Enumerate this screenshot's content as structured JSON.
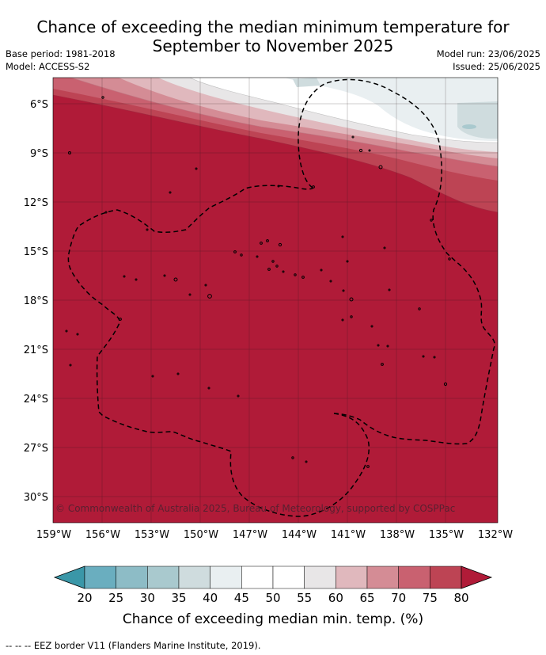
{
  "title_line1": "Chance of exceeding the median minimum temperature for",
  "title_line2": "September to November 2025",
  "base_period": "Base period: 1981-2018",
  "model": "Model: ACCESS-S2",
  "model_run": "Model run: 23/06/2025",
  "issued": "Issued: 25/06/2025",
  "lat_labels": [
    "6°S",
    "9°S",
    "12°S",
    "15°S",
    "18°S",
    "21°S",
    "24°S",
    "27°S",
    "30°S"
  ],
  "lon_labels": [
    "159°W",
    "156°W",
    "153°W",
    "150°W",
    "147°W",
    "144°W",
    "141°W",
    "138°W",
    "135°W",
    "132°W"
  ],
  "copyright": "© Commonwealth of Australia 2025, Bureau of Meteorology, supported by COSPPac",
  "colorbar": {
    "ticks": [
      "20",
      "25",
      "30",
      "35",
      "40",
      "45",
      "50",
      "55",
      "60",
      "65",
      "70",
      "75",
      "80"
    ],
    "colors": [
      "#3a97a8",
      "#6aaebf",
      "#8dbcc6",
      "#a9c9ce",
      "#cfdcde",
      "#e9eff1",
      "#ffffff",
      "#ffffff",
      "#e8e6e7",
      "#e0b8bd",
      "#d48c95",
      "#c96170",
      "#bd4454",
      "#b01b38"
    ],
    "label": "Chance of exceeding median min. temp. (%)"
  },
  "legend_note": "--  --  -- EEZ border V11 (Flanders Marine Institute, 2019)."
}
